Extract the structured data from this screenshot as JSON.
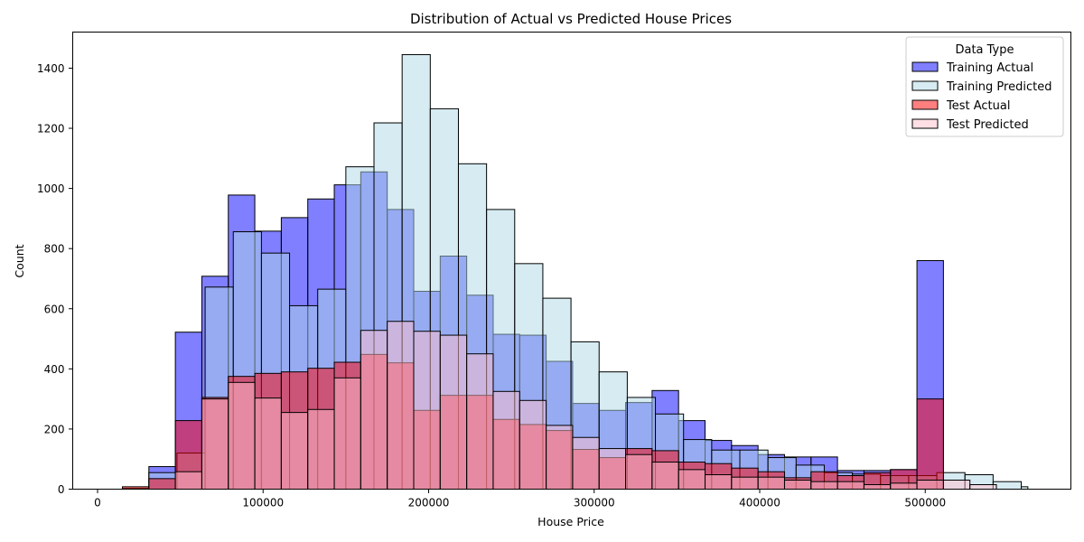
{
  "chart_data": {
    "type": "bar",
    "title": "Distribution of Actual vs Predicted House Prices",
    "xlabel": "House Price",
    "ylabel": "Count",
    "xlim": [
      -15000,
      588000
    ],
    "ylim": [
      0,
      1520
    ],
    "xticks": [
      0,
      100000,
      200000,
      300000,
      400000,
      500000
    ],
    "yticks": [
      0,
      200,
      400,
      600,
      800,
      1000,
      1200,
      1400
    ],
    "legend_title": "Data Type",
    "legend_position": "top-right",
    "series": [
      {
        "name": "Training Actual",
        "color": "#0000ff",
        "alpha": 0.5,
        "bins": [
          {
            "x0": 31000,
            "x1": 47000,
            "value": 75
          },
          {
            "x0": 47000,
            "x1": 63000,
            "value": 522
          },
          {
            "x0": 63000,
            "x1": 79000,
            "value": 708
          },
          {
            "x0": 79000,
            "x1": 95000,
            "value": 978
          },
          {
            "x0": 95000,
            "x1": 111000,
            "value": 858
          },
          {
            "x0": 111000,
            "x1": 127000,
            "value": 903
          },
          {
            "x0": 127000,
            "x1": 143000,
            "value": 965
          },
          {
            "x0": 143000,
            "x1": 159000,
            "value": 1012
          },
          {
            "x0": 159000,
            "x1": 175000,
            "value": 1055
          },
          {
            "x0": 175000,
            "x1": 191000,
            "value": 930
          },
          {
            "x0": 191000,
            "x1": 207000,
            "value": 658
          },
          {
            "x0": 207000,
            "x1": 223000,
            "value": 775
          },
          {
            "x0": 223000,
            "x1": 239000,
            "value": 645
          },
          {
            "x0": 239000,
            "x1": 255000,
            "value": 515
          },
          {
            "x0": 255000,
            "x1": 271000,
            "value": 512
          },
          {
            "x0": 271000,
            "x1": 287000,
            "value": 425
          },
          {
            "x0": 287000,
            "x1": 303000,
            "value": 285
          },
          {
            "x0": 303000,
            "x1": 319000,
            "value": 262
          },
          {
            "x0": 319000,
            "x1": 335000,
            "value": 288
          },
          {
            "x0": 335000,
            "x1": 351000,
            "value": 328
          },
          {
            "x0": 351000,
            "x1": 367000,
            "value": 228
          },
          {
            "x0": 367000,
            "x1": 383000,
            "value": 162
          },
          {
            "x0": 383000,
            "x1": 399000,
            "value": 145
          },
          {
            "x0": 399000,
            "x1": 415000,
            "value": 115
          },
          {
            "x0": 415000,
            "x1": 431000,
            "value": 107
          },
          {
            "x0": 431000,
            "x1": 447000,
            "value": 107
          },
          {
            "x0": 447000,
            "x1": 463000,
            "value": 62
          },
          {
            "x0": 463000,
            "x1": 479000,
            "value": 62
          },
          {
            "x0": 479000,
            "x1": 495000,
            "value": 65
          },
          {
            "x0": 495000,
            "x1": 511000,
            "value": 760
          }
        ]
      },
      {
        "name": "Training Predicted",
        "color": "#add8e6",
        "alpha": 0.5,
        "bins": [
          {
            "x0": 15000,
            "x1": 31000,
            "value": 3
          },
          {
            "x0": 31000,
            "x1": 48000,
            "value": 55
          },
          {
            "x0": 48000,
            "x1": 65000,
            "value": 120
          },
          {
            "x0": 65000,
            "x1": 82000,
            "value": 672
          },
          {
            "x0": 82000,
            "x1": 99000,
            "value": 856
          },
          {
            "x0": 99000,
            "x1": 116000,
            "value": 785
          },
          {
            "x0": 116000,
            "x1": 133000,
            "value": 610
          },
          {
            "x0": 133000,
            "x1": 150000,
            "value": 665
          },
          {
            "x0": 150000,
            "x1": 167000,
            "value": 1072
          },
          {
            "x0": 167000,
            "x1": 184000,
            "value": 1218
          },
          {
            "x0": 184000,
            "x1": 201000,
            "value": 1445
          },
          {
            "x0": 201000,
            "x1": 218000,
            "value": 1265
          },
          {
            "x0": 218000,
            "x1": 235000,
            "value": 1082
          },
          {
            "x0": 235000,
            "x1": 252000,
            "value": 930
          },
          {
            "x0": 252000,
            "x1": 269000,
            "value": 750
          },
          {
            "x0": 269000,
            "x1": 286000,
            "value": 635
          },
          {
            "x0": 286000,
            "x1": 303000,
            "value": 490
          },
          {
            "x0": 303000,
            "x1": 320000,
            "value": 390
          },
          {
            "x0": 320000,
            "x1": 337000,
            "value": 305
          },
          {
            "x0": 337000,
            "x1": 354000,
            "value": 250
          },
          {
            "x0": 354000,
            "x1": 371000,
            "value": 165
          },
          {
            "x0": 371000,
            "x1": 388000,
            "value": 130
          },
          {
            "x0": 388000,
            "x1": 405000,
            "value": 130
          },
          {
            "x0": 405000,
            "x1": 422000,
            "value": 105
          },
          {
            "x0": 422000,
            "x1": 439000,
            "value": 80
          },
          {
            "x0": 439000,
            "x1": 456000,
            "value": 55
          },
          {
            "x0": 456000,
            "x1": 473000,
            "value": 50
          },
          {
            "x0": 473000,
            "x1": 490000,
            "value": 45
          },
          {
            "x0": 490000,
            "x1": 507000,
            "value": 45
          },
          {
            "x0": 507000,
            "x1": 524000,
            "value": 55
          },
          {
            "x0": 524000,
            "x1": 541000,
            "value": 48
          },
          {
            "x0": 541000,
            "x1": 558000,
            "value": 25
          },
          {
            "x0": 558000,
            "x1": 562000,
            "value": 8
          }
        ]
      },
      {
        "name": "Test Actual",
        "color": "#ff0000",
        "alpha": 0.5,
        "bins": [
          {
            "x0": 15000,
            "x1": 31000,
            "value": 8
          },
          {
            "x0": 31000,
            "x1": 47000,
            "value": 35
          },
          {
            "x0": 47000,
            "x1": 63000,
            "value": 228
          },
          {
            "x0": 63000,
            "x1": 79000,
            "value": 305
          },
          {
            "x0": 79000,
            "x1": 95000,
            "value": 375
          },
          {
            "x0": 95000,
            "x1": 111000,
            "value": 385
          },
          {
            "x0": 111000,
            "x1": 127000,
            "value": 390
          },
          {
            "x0": 127000,
            "x1": 143000,
            "value": 402
          },
          {
            "x0": 143000,
            "x1": 159000,
            "value": 422
          },
          {
            "x0": 159000,
            "x1": 175000,
            "value": 448
          },
          {
            "x0": 175000,
            "x1": 191000,
            "value": 420
          },
          {
            "x0": 191000,
            "x1": 207000,
            "value": 262
          },
          {
            "x0": 207000,
            "x1": 223000,
            "value": 312
          },
          {
            "x0": 223000,
            "x1": 239000,
            "value": 312
          },
          {
            "x0": 239000,
            "x1": 255000,
            "value": 232
          },
          {
            "x0": 255000,
            "x1": 271000,
            "value": 215
          },
          {
            "x0": 271000,
            "x1": 287000,
            "value": 195
          },
          {
            "x0": 287000,
            "x1": 303000,
            "value": 132
          },
          {
            "x0": 303000,
            "x1": 319000,
            "value": 105
          },
          {
            "x0": 319000,
            "x1": 335000,
            "value": 135
          },
          {
            "x0": 335000,
            "x1": 351000,
            "value": 128
          },
          {
            "x0": 351000,
            "x1": 367000,
            "value": 90
          },
          {
            "x0": 367000,
            "x1": 383000,
            "value": 85
          },
          {
            "x0": 383000,
            "x1": 399000,
            "value": 70
          },
          {
            "x0": 399000,
            "x1": 415000,
            "value": 58
          },
          {
            "x0": 415000,
            "x1": 431000,
            "value": 38
          },
          {
            "x0": 431000,
            "x1": 447000,
            "value": 58
          },
          {
            "x0": 447000,
            "x1": 463000,
            "value": 45
          },
          {
            "x0": 463000,
            "x1": 479000,
            "value": 55
          },
          {
            "x0": 479000,
            "x1": 495000,
            "value": 65
          },
          {
            "x0": 495000,
            "x1": 511000,
            "value": 300
          }
        ]
      },
      {
        "name": "Test Predicted",
        "color": "#ffc0cb",
        "alpha": 0.5,
        "bins": [
          {
            "x0": 47000,
            "x1": 63000,
            "value": 58
          },
          {
            "x0": 63000,
            "x1": 79000,
            "value": 300
          },
          {
            "x0": 79000,
            "x1": 95000,
            "value": 355
          },
          {
            "x0": 95000,
            "x1": 111000,
            "value": 303
          },
          {
            "x0": 111000,
            "x1": 127000,
            "value": 255
          },
          {
            "x0": 127000,
            "x1": 143000,
            "value": 265
          },
          {
            "x0": 143000,
            "x1": 159000,
            "value": 370
          },
          {
            "x0": 159000,
            "x1": 175000,
            "value": 528
          },
          {
            "x0": 175000,
            "x1": 191000,
            "value": 558
          },
          {
            "x0": 191000,
            "x1": 207000,
            "value": 525
          },
          {
            "x0": 207000,
            "x1": 223000,
            "value": 512
          },
          {
            "x0": 223000,
            "x1": 239000,
            "value": 450
          },
          {
            "x0": 239000,
            "x1": 255000,
            "value": 325
          },
          {
            "x0": 255000,
            "x1": 271000,
            "value": 295
          },
          {
            "x0": 271000,
            "x1": 287000,
            "value": 212
          },
          {
            "x0": 287000,
            "x1": 303000,
            "value": 172
          },
          {
            "x0": 303000,
            "x1": 319000,
            "value": 135
          },
          {
            "x0": 319000,
            "x1": 335000,
            "value": 115
          },
          {
            "x0": 335000,
            "x1": 351000,
            "value": 90
          },
          {
            "x0": 351000,
            "x1": 367000,
            "value": 65
          },
          {
            "x0": 367000,
            "x1": 383000,
            "value": 48
          },
          {
            "x0": 383000,
            "x1": 399000,
            "value": 40
          },
          {
            "x0": 399000,
            "x1": 415000,
            "value": 40
          },
          {
            "x0": 415000,
            "x1": 431000,
            "value": 30
          },
          {
            "x0": 431000,
            "x1": 447000,
            "value": 25
          },
          {
            "x0": 447000,
            "x1": 463000,
            "value": 25
          },
          {
            "x0": 463000,
            "x1": 479000,
            "value": 15
          },
          {
            "x0": 479000,
            "x1": 495000,
            "value": 20
          },
          {
            "x0": 495000,
            "x1": 511000,
            "value": 30
          },
          {
            "x0": 511000,
            "x1": 527000,
            "value": 30
          },
          {
            "x0": 527000,
            "x1": 543000,
            "value": 15
          }
        ]
      }
    ]
  }
}
